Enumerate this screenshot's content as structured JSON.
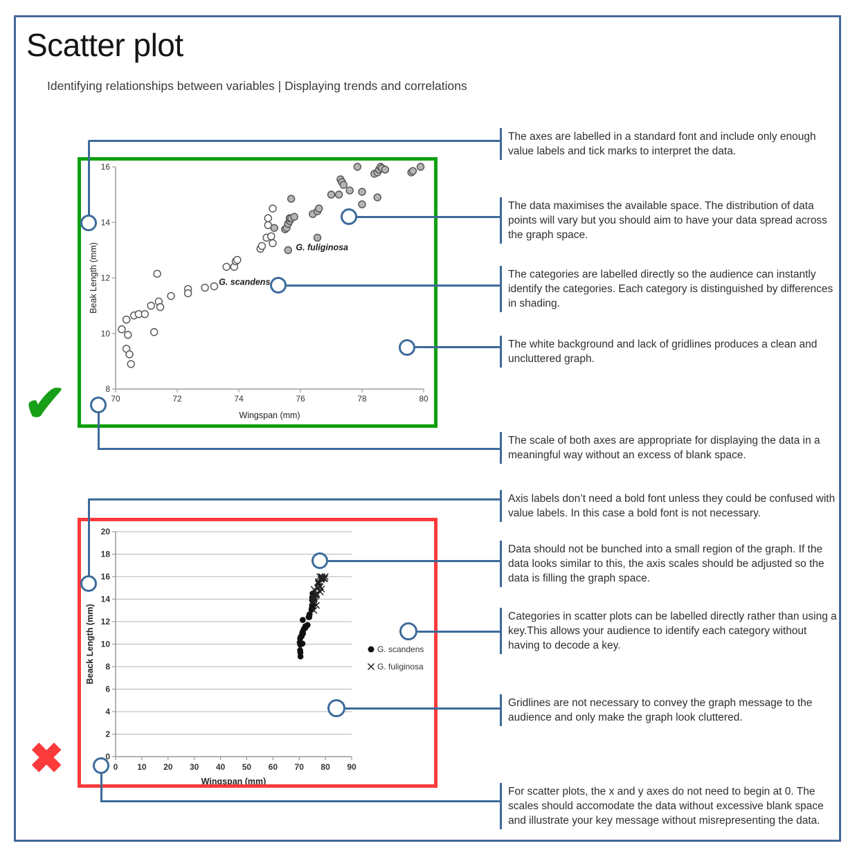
{
  "page": {
    "title": "Scatter plot",
    "subtitle": "Identifying relationships between variables | Displaying trends and correlations"
  },
  "colors": {
    "accent_blue": "#3c6a9a",
    "good_green": "#0f9f0f",
    "bad_red": "#fb3b3b",
    "check_green": "#18a018",
    "marker_stroke": "#515151",
    "marker_gray_fill": "#b5b5b5",
    "marker_black": "#111111",
    "axis_gray": "#9a9a9a",
    "grid_gray": "#b3b3b3",
    "chart_text": "#333333"
  },
  "good_example": {
    "verdict_icon": "checkmark",
    "verdict_glyph": "✔"
  },
  "bad_example": {
    "verdict_icon": "x-mark",
    "verdict_glyph": "✖"
  },
  "chart_data": [
    {
      "type": "scatter",
      "xlabel": "Wingspan (mm)",
      "ylabel": "Beak Length (mm)",
      "xlim": [
        70,
        80
      ],
      "ylim": [
        8,
        16
      ],
      "xticks": [
        70,
        72,
        74,
        76,
        78,
        80
      ],
      "yticks": [
        8,
        10,
        12,
        14,
        16
      ],
      "grid": false,
      "legend": null,
      "series": [
        {
          "name": "G. scandens",
          "marker": "open-circle",
          "direct_label": {
            "text": "G. scandens",
            "x": 73.35,
            "y": 11.85
          },
          "points": [
            [
              70.2,
              10.15
            ],
            [
              70.4,
              9.95
            ],
            [
              70.35,
              9.45
            ],
            [
              70.45,
              9.25
            ],
            [
              70.5,
              8.9
            ],
            [
              70.35,
              10.5
            ],
            [
              70.6,
              10.65
            ],
            [
              70.75,
              10.7
            ],
            [
              70.95,
              10.7
            ],
            [
              71.15,
              11.0
            ],
            [
              71.25,
              10.05
            ],
            [
              71.35,
              12.15
            ],
            [
              71.4,
              11.15
            ],
            [
              71.45,
              10.95
            ],
            [
              71.8,
              11.35
            ],
            [
              72.35,
              11.6
            ],
            [
              72.35,
              11.45
            ],
            [
              72.9,
              11.65
            ],
            [
              73.2,
              11.7
            ],
            [
              73.6,
              12.4
            ],
            [
              73.85,
              12.4
            ],
            [
              73.9,
              12.6
            ],
            [
              73.95,
              12.65
            ],
            [
              74.7,
              13.05
            ],
            [
              74.75,
              13.15
            ],
            [
              74.9,
              13.45
            ],
            [
              75.05,
              13.5
            ],
            [
              75.1,
              13.25
            ],
            [
              74.95,
              14.15
            ],
            [
              74.95,
              13.9
            ],
            [
              75.1,
              14.5
            ]
          ]
        },
        {
          "name": "G. fuliginosa",
          "marker": "gray-circle",
          "direct_label": {
            "text": "G. fuliginosa",
            "x": 75.85,
            "y": 13.1
          },
          "points": [
            [
              75.15,
              13.8
            ],
            [
              75.5,
              13.75
            ],
            [
              75.55,
              13.8
            ],
            [
              75.6,
              13.95
            ],
            [
              75.65,
              14.05
            ],
            [
              75.65,
              14.15
            ],
            [
              75.7,
              14.15
            ],
            [
              75.8,
              14.2
            ],
            [
              75.7,
              14.85
            ],
            [
              75.6,
              13.0
            ],
            [
              76.4,
              14.3
            ],
            [
              76.55,
              14.4
            ],
            [
              76.6,
              14.5
            ],
            [
              76.55,
              13.45
            ],
            [
              77.0,
              15.0
            ],
            [
              77.25,
              15.0
            ],
            [
              77.3,
              15.55
            ],
            [
              77.35,
              15.45
            ],
            [
              77.4,
              15.35
            ],
            [
              77.6,
              15.15
            ],
            [
              77.85,
              16.0
            ],
            [
              78.0,
              15.1
            ],
            [
              78.0,
              14.65
            ],
            [
              78.4,
              15.75
            ],
            [
              78.5,
              15.8
            ],
            [
              78.55,
              15.9
            ],
            [
              78.6,
              16.0
            ],
            [
              78.65,
              15.95
            ],
            [
              78.75,
              15.9
            ],
            [
              78.5,
              14.9
            ],
            [
              79.6,
              15.8
            ],
            [
              79.65,
              15.85
            ],
            [
              79.9,
              16.0
            ]
          ]
        }
      ]
    },
    {
      "type": "scatter",
      "xlabel": "Wingspan (mm)",
      "ylabel": "Beack Length (mm)",
      "xlim": [
        0,
        90
      ],
      "ylim": [
        0,
        20
      ],
      "xticks": [
        0,
        10,
        20,
        30,
        40,
        50,
        60,
        70,
        80,
        90
      ],
      "yticks": [
        0,
        2,
        4,
        6,
        8,
        10,
        12,
        14,
        16,
        18,
        20
      ],
      "grid": true,
      "legend": {
        "position": "right",
        "items": [
          {
            "marker": "filled-circle",
            "label": "G. scandens"
          },
          {
            "marker": "x",
            "label": "G. fuliginosa"
          }
        ]
      },
      "series": [
        {
          "name": "G. scandens",
          "marker": "filled-circle",
          "points": [
            [
              70.2,
              10.15
            ],
            [
              70.4,
              9.95
            ],
            [
              70.35,
              9.45
            ],
            [
              70.45,
              9.25
            ],
            [
              70.5,
              8.9
            ],
            [
              70.35,
              10.5
            ],
            [
              70.6,
              10.65
            ],
            [
              70.75,
              10.7
            ],
            [
              70.95,
              10.7
            ],
            [
              71.15,
              11.0
            ],
            [
              71.25,
              10.05
            ],
            [
              71.35,
              12.15
            ],
            [
              71.4,
              11.15
            ],
            [
              71.45,
              10.95
            ],
            [
              71.8,
              11.35
            ],
            [
              72.35,
              11.6
            ],
            [
              72.35,
              11.45
            ],
            [
              72.9,
              11.65
            ],
            [
              73.2,
              11.7
            ],
            [
              73.6,
              12.4
            ],
            [
              73.85,
              12.4
            ],
            [
              73.9,
              12.6
            ],
            [
              73.95,
              12.65
            ],
            [
              74.7,
              13.05
            ],
            [
              74.75,
              13.15
            ],
            [
              74.9,
              13.45
            ],
            [
              75.05,
              13.5
            ],
            [
              75.1,
              13.25
            ],
            [
              74.95,
              14.15
            ],
            [
              74.95,
              13.9
            ],
            [
              75.1,
              14.5
            ]
          ]
        },
        {
          "name": "G. fuliginosa",
          "marker": "x",
          "points": [
            [
              75.15,
              13.8
            ],
            [
              75.5,
              13.75
            ],
            [
              75.55,
              13.8
            ],
            [
              75.6,
              13.95
            ],
            [
              75.65,
              14.05
            ],
            [
              75.65,
              14.15
            ],
            [
              75.7,
              14.15
            ],
            [
              75.8,
              14.2
            ],
            [
              75.7,
              14.85
            ],
            [
              75.6,
              13.0
            ],
            [
              76.4,
              14.3
            ],
            [
              76.55,
              14.4
            ],
            [
              76.6,
              14.5
            ],
            [
              76.55,
              13.45
            ],
            [
              77.0,
              15.0
            ],
            [
              77.25,
              15.0
            ],
            [
              77.3,
              15.55
            ],
            [
              77.35,
              15.45
            ],
            [
              77.4,
              15.35
            ],
            [
              77.6,
              15.15
            ],
            [
              77.85,
              16.0
            ],
            [
              78.0,
              15.1
            ],
            [
              78.0,
              14.65
            ],
            [
              78.4,
              15.75
            ],
            [
              78.5,
              15.8
            ],
            [
              78.55,
              15.9
            ],
            [
              78.6,
              16.0
            ],
            [
              78.65,
              15.95
            ],
            [
              78.75,
              15.9
            ],
            [
              78.5,
              14.9
            ],
            [
              79.6,
              15.8
            ],
            [
              79.65,
              15.85
            ],
            [
              79.9,
              16.0
            ]
          ]
        }
      ]
    }
  ],
  "callouts": [
    {
      "id": "axes-standard-font",
      "text": "The axes are labelled in a standard font and include only enough value labels and tick marks to interpret the data."
    },
    {
      "id": "data-maximises-space",
      "text": "The data maximises the available space. The distribution of data points will vary but you should aim to have your data spread across the graph space."
    },
    {
      "id": "categories-labelled-directly",
      "text": "The categories are labelled directly so the audience can instantly identify the categories. Each category is distinguished by differences in shading."
    },
    {
      "id": "white-background",
      "text": "The white background and lack of gridlines produces a clean and uncluttered graph."
    },
    {
      "id": "appropriate-scale",
      "text": "The scale of both axes are appropriate for displaying the data in a meaningful way without an excess of blank space."
    },
    {
      "id": "no-bold-axis-labels",
      "text": "Axis labels don’t need a bold font unless they could be confused with value labels. In this case a bold font is not necessary."
    },
    {
      "id": "data-bunched",
      "text": "Data should not be bunched into a small region of the graph. If the data looks similar to this, the axis scales should be adjusted so the data is filling the graph space."
    },
    {
      "id": "label-directly-not-key",
      "text": "Categories in scatter plots can be labelled directly rather than using a key.This allows your audience to identify each category without having to decode a key."
    },
    {
      "id": "gridlines-unnecessary",
      "text": "Gridlines are not necessary to convey the graph message to the audience and only make the graph look cluttered."
    },
    {
      "id": "axes-need-not-start-at-zero",
      "text": "For scatter plots, the x and y axes do not need to begin at 0. The scales should accomodate the data without excessive blank space and illustrate your key message without misrepresenting the data."
    }
  ]
}
